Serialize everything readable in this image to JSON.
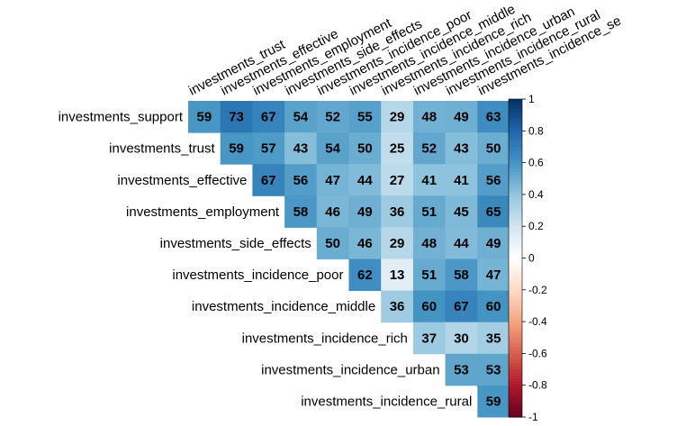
{
  "chart_data": {
    "type": "heatmap",
    "layout": "upper-triangle",
    "rows": [
      "investments_support",
      "investments_trust",
      "investments_effective",
      "investments_employment",
      "investments_side_effects",
      "investments_incidence_poor",
      "investments_incidence_middle",
      "investments_incidence_rich",
      "investments_incidence_urban",
      "investments_incidence_rural"
    ],
    "columns": [
      "investments_trust",
      "investments_effective",
      "investments_employment",
      "investments_side_effects",
      "investments_incidence_poor",
      "investments_incidence_middle",
      "investments_incidence_rich",
      "investments_incidence_urban",
      "investments_incidence_rural",
      "investments_incidence_se"
    ],
    "values": [
      [
        59,
        73,
        67,
        54,
        52,
        55,
        29,
        48,
        49,
        63
      ],
      [
        59,
        57,
        43,
        54,
        50,
        25,
        52,
        43,
        50
      ],
      [
        67,
        56,
        47,
        44,
        27,
        41,
        41,
        56
      ],
      [
        58,
        46,
        49,
        36,
        51,
        45,
        65
      ],
      [
        50,
        46,
        29,
        48,
        44,
        49
      ],
      [
        62,
        13,
        51,
        58,
        47
      ],
      [
        36,
        60,
        67,
        60
      ],
      [
        37,
        30,
        35
      ],
      [
        53,
        53
      ],
      [
        59
      ]
    ],
    "value_scale": 100,
    "colorbar": {
      "range": [
        -1,
        1
      ],
      "ticks": [
        "1",
        "0.8",
        "0.6",
        "0.4",
        "0.2",
        "0",
        "-0.2",
        "-0.4",
        "-0.6",
        "-0.8",
        "-1"
      ],
      "palette": [
        "#67001F",
        "#B2182B",
        "#D6604D",
        "#F4A582",
        "#FDDBC7",
        "#FFFFFF",
        "#D1E5F0",
        "#92C5DE",
        "#4393C3",
        "#2166AC",
        "#053061"
      ]
    }
  }
}
